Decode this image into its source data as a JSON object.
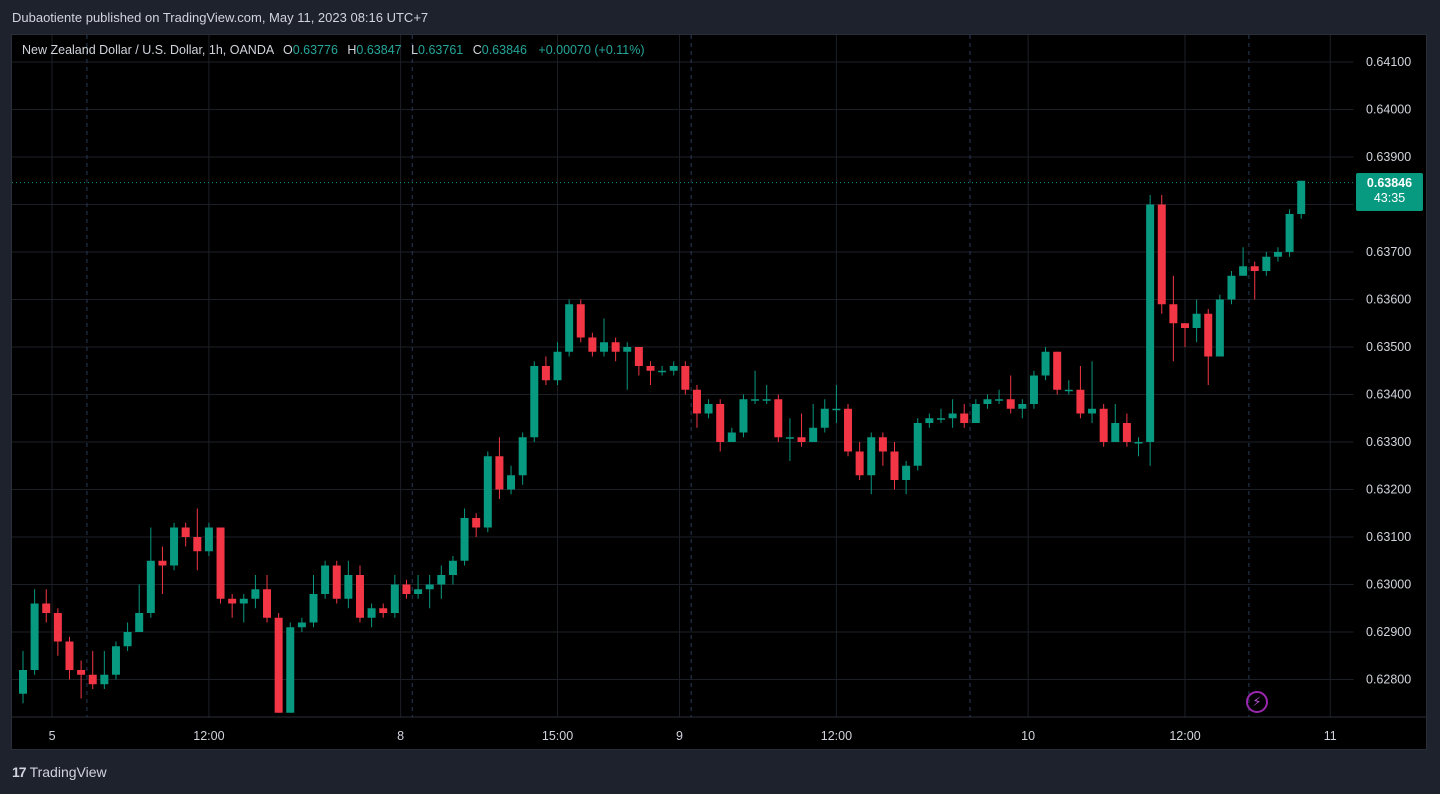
{
  "header": {
    "publisher_text": "Dubaotiente published on TradingView.com, May 11, 2023 08:16 UTC+7"
  },
  "legend": {
    "symbol": "New Zealand Dollar / U.S. Dollar, 1h, OANDA",
    "open_label": "O",
    "open": "0.63776",
    "high_label": "H",
    "high": "0.63847",
    "low_label": "L",
    "low": "0.63761",
    "close_label": "C",
    "close": "0.63846",
    "change": "+0.00070 (+0.11%)"
  },
  "price_tag": {
    "price": "0.63846",
    "countdown": "43:35"
  },
  "footer": {
    "logo_mark": "17",
    "logo_text": "TradingView"
  },
  "colors": {
    "up": "#089981",
    "down": "#f23645",
    "background": "#000000",
    "grid": "#1c1f26",
    "axis_text": "#d1d4dc",
    "accent_purple": "#9c27b0"
  },
  "icons": {
    "alert": "lightning-bolt-icon",
    "logo": "tradingview-logo-icon"
  },
  "chart_data": {
    "type": "candlestick",
    "title": "New Zealand Dollar / U.S. Dollar, 1h, OANDA",
    "ylim": [
      0.6273,
      0.6416
    ],
    "y_ticks": [
      0.641,
      0.64,
      0.639,
      0.638,
      0.637,
      0.636,
      0.635,
      0.634,
      0.633,
      0.632,
      0.631,
      0.63,
      0.629,
      0.628
    ],
    "y_tick_labels": [
      "0.64100",
      "0.64000",
      "0.63900",
      "0.63800",
      "0.63700",
      "0.63600",
      "0.63500",
      "0.63400",
      "0.63300",
      "0.63200",
      "0.63100",
      "0.63000",
      "0.62900",
      "0.62800"
    ],
    "x_ticks": [
      {
        "label": "5",
        "index": 2.5
      },
      {
        "label": "12:00",
        "index": 16
      },
      {
        "label": "8",
        "index": 32.5
      },
      {
        "label": "15:00",
        "index": 46
      },
      {
        "label": "9",
        "index": 56.5
      },
      {
        "label": "12:00",
        "index": 70
      },
      {
        "label": "10",
        "index": 86.5
      },
      {
        "label": "12:00",
        "index": 100
      },
      {
        "label": "11",
        "index": 112.5
      },
      {
        "label": "12:00",
        "index": 124
      }
    ],
    "day_separators": [
      6,
      34,
      58,
      82,
      106
    ],
    "last_price": 0.63846,
    "candles": [
      [
        0.6277,
        0.6282,
        0.6275,
        0.6286
      ],
      [
        0.6282,
        0.6296,
        0.6281,
        0.6299
      ],
      [
        0.6296,
        0.6294,
        0.6292,
        0.6299
      ],
      [
        0.6294,
        0.6288,
        0.6285,
        0.6295
      ],
      [
        0.6288,
        0.6282,
        0.628,
        0.6289
      ],
      [
        0.6282,
        0.6281,
        0.6276,
        0.6284
      ],
      [
        0.6281,
        0.6279,
        0.6278,
        0.6286
      ],
      [
        0.6279,
        0.6281,
        0.6278,
        0.6286
      ],
      [
        0.6281,
        0.6287,
        0.628,
        0.6288
      ],
      [
        0.6287,
        0.629,
        0.6286,
        0.6292
      ],
      [
        0.629,
        0.6294,
        0.629,
        0.63
      ],
      [
        0.6294,
        0.6305,
        0.6293,
        0.6312
      ],
      [
        0.6305,
        0.6304,
        0.6298,
        0.6308
      ],
      [
        0.6304,
        0.6312,
        0.6303,
        0.6313
      ],
      [
        0.6312,
        0.631,
        0.6308,
        0.6313
      ],
      [
        0.631,
        0.6307,
        0.6303,
        0.6316
      ],
      [
        0.6307,
        0.6312,
        0.6306,
        0.6313
      ],
      [
        0.6312,
        0.6297,
        0.6296,
        0.6312
      ],
      [
        0.6297,
        0.6296,
        0.6293,
        0.6298
      ],
      [
        0.6296,
        0.6297,
        0.6292,
        0.6298
      ],
      [
        0.6297,
        0.6299,
        0.6295,
        0.6302
      ],
      [
        0.6299,
        0.6293,
        0.6292,
        0.6302
      ],
      [
        0.6293,
        0.6273,
        0.6273,
        0.6294
      ],
      [
        0.6273,
        0.6291,
        0.6273,
        0.6292
      ],
      [
        0.6291,
        0.6292,
        0.629,
        0.6293
      ],
      [
        0.6292,
        0.6298,
        0.6291,
        0.6302
      ],
      [
        0.6298,
        0.6304,
        0.6297,
        0.6305
      ],
      [
        0.6304,
        0.6297,
        0.6296,
        0.6305
      ],
      [
        0.6297,
        0.6302,
        0.6295,
        0.6305
      ],
      [
        0.6302,
        0.6293,
        0.6292,
        0.6304
      ],
      [
        0.6293,
        0.6295,
        0.6291,
        0.6296
      ],
      [
        0.6295,
        0.6294,
        0.6293,
        0.6296
      ],
      [
        0.6294,
        0.63,
        0.6293,
        0.6302
      ],
      [
        0.63,
        0.6298,
        0.6297,
        0.6301
      ],
      [
        0.6298,
        0.6299,
        0.6297,
        0.6302
      ],
      [
        0.6299,
        0.63,
        0.6295,
        0.6302
      ],
      [
        0.63,
        0.6302,
        0.6297,
        0.6304
      ],
      [
        0.6302,
        0.6305,
        0.63,
        0.6306
      ],
      [
        0.6305,
        0.6314,
        0.6304,
        0.6316
      ],
      [
        0.6314,
        0.6312,
        0.631,
        0.6315
      ],
      [
        0.6312,
        0.6327,
        0.6311,
        0.6328
      ],
      [
        0.6327,
        0.632,
        0.6318,
        0.6331
      ],
      [
        0.632,
        0.6323,
        0.6319,
        0.6325
      ],
      [
        0.6323,
        0.6331,
        0.6321,
        0.6332
      ],
      [
        0.6331,
        0.6346,
        0.633,
        0.6347
      ],
      [
        0.6346,
        0.6343,
        0.6342,
        0.6348
      ],
      [
        0.6343,
        0.6349,
        0.6342,
        0.6351
      ],
      [
        0.6349,
        0.6359,
        0.6348,
        0.636
      ],
      [
        0.6359,
        0.6352,
        0.6351,
        0.636
      ],
      [
        0.6352,
        0.6349,
        0.6348,
        0.6353
      ],
      [
        0.6349,
        0.6351,
        0.6348,
        0.6356
      ],
      [
        0.6351,
        0.6349,
        0.6347,
        0.6352
      ],
      [
        0.6349,
        0.635,
        0.6341,
        0.6351
      ],
      [
        0.635,
        0.6346,
        0.6344,
        0.635
      ],
      [
        0.6346,
        0.6345,
        0.6342,
        0.6347
      ],
      [
        0.6345,
        0.6345,
        0.6344,
        0.6346
      ],
      [
        0.6345,
        0.6346,
        0.6344,
        0.6347
      ],
      [
        0.6346,
        0.6341,
        0.634,
        0.6347
      ],
      [
        0.6341,
        0.6336,
        0.6333,
        0.6342
      ],
      [
        0.6336,
        0.6338,
        0.6335,
        0.6339
      ],
      [
        0.6338,
        0.633,
        0.6328,
        0.6339
      ],
      [
        0.633,
        0.6332,
        0.633,
        0.6333
      ],
      [
        0.6332,
        0.6339,
        0.6331,
        0.634
      ],
      [
        0.6339,
        0.6339,
        0.6338,
        0.6345
      ],
      [
        0.6339,
        0.6339,
        0.6338,
        0.6342
      ],
      [
        0.6339,
        0.6331,
        0.633,
        0.634
      ],
      [
        0.6331,
        0.6331,
        0.6326,
        0.6335
      ],
      [
        0.6331,
        0.633,
        0.6329,
        0.6336
      ],
      [
        0.633,
        0.6333,
        0.633,
        0.6338
      ],
      [
        0.6333,
        0.6337,
        0.6332,
        0.6339
      ],
      [
        0.6337,
        0.6337,
        0.6334,
        0.6342
      ],
      [
        0.6337,
        0.6328,
        0.6327,
        0.6338
      ],
      [
        0.6328,
        0.6323,
        0.6322,
        0.633
      ],
      [
        0.6323,
        0.6331,
        0.6319,
        0.6332
      ],
      [
        0.6331,
        0.6328,
        0.6325,
        0.6332
      ],
      [
        0.6328,
        0.6322,
        0.632,
        0.633
      ],
      [
        0.6322,
        0.6325,
        0.6319,
        0.6326
      ],
      [
        0.6325,
        0.6334,
        0.6324,
        0.6335
      ],
      [
        0.6334,
        0.6335,
        0.6333,
        0.6336
      ],
      [
        0.6335,
        0.6335,
        0.6334,
        0.6337
      ],
      [
        0.6335,
        0.6336,
        0.6333,
        0.6339
      ],
      [
        0.6336,
        0.6334,
        0.6333,
        0.6338
      ],
      [
        0.6334,
        0.6338,
        0.6334,
        0.6339
      ],
      [
        0.6338,
        0.6339,
        0.6337,
        0.634
      ],
      [
        0.6339,
        0.6339,
        0.6338,
        0.6341
      ],
      [
        0.6339,
        0.6337,
        0.6336,
        0.6344
      ],
      [
        0.6337,
        0.6338,
        0.6335,
        0.6339
      ],
      [
        0.6338,
        0.6344,
        0.6337,
        0.6345
      ],
      [
        0.6344,
        0.6349,
        0.6343,
        0.635
      ],
      [
        0.6349,
        0.6341,
        0.634,
        0.6349
      ],
      [
        0.6341,
        0.6341,
        0.634,
        0.6343
      ],
      [
        0.6341,
        0.6336,
        0.6335,
        0.6346
      ],
      [
        0.6336,
        0.6337,
        0.6334,
        0.6347
      ],
      [
        0.6337,
        0.633,
        0.6329,
        0.6338
      ],
      [
        0.633,
        0.6334,
        0.633,
        0.6338
      ],
      [
        0.6334,
        0.633,
        0.6329,
        0.6336
      ],
      [
        0.633,
        0.633,
        0.6327,
        0.6331
      ],
      [
        0.633,
        0.638,
        0.6325,
        0.6382
      ],
      [
        0.638,
        0.6359,
        0.6357,
        0.6382
      ],
      [
        0.6359,
        0.6355,
        0.6347,
        0.6365
      ],
      [
        0.6355,
        0.6354,
        0.635,
        0.6355
      ],
      [
        0.6354,
        0.6357,
        0.6351,
        0.636
      ],
      [
        0.6357,
        0.6348,
        0.6342,
        0.6358
      ],
      [
        0.6348,
        0.636,
        0.6348,
        0.6361
      ],
      [
        0.636,
        0.6365,
        0.6359,
        0.6366
      ],
      [
        0.6365,
        0.6367,
        0.6365,
        0.6371
      ],
      [
        0.6367,
        0.6366,
        0.636,
        0.6368
      ],
      [
        0.6366,
        0.6369,
        0.6365,
        0.637
      ],
      [
        0.6369,
        0.637,
        0.6368,
        0.6371
      ],
      [
        0.637,
        0.6378,
        0.6369,
        0.6379
      ],
      [
        0.6378,
        0.6385,
        0.6377,
        0.6385
      ]
    ]
  }
}
